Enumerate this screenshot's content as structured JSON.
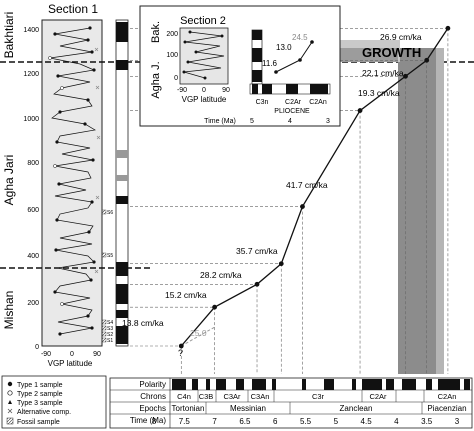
{
  "section1": {
    "title": "Section 1",
    "formations": [
      "Bakhtiari",
      "Agha Jari",
      "Mishan"
    ],
    "depth_ticks": [
      "1400",
      "1200",
      "1000",
      "800",
      "600",
      "400",
      "200",
      "0"
    ],
    "vgp_ticks": [
      "-90",
      "0",
      "90"
    ],
    "vgp_label": "VGP latitude",
    "fossil_samples": [
      "S6",
      "S5",
      "S4",
      "S3",
      "S2",
      "S1"
    ]
  },
  "section2": {
    "title": "Section 2",
    "formations": [
      "Agha J.",
      "Bak."
    ],
    "depth_ticks": [
      "200",
      "100",
      "0"
    ],
    "vgp_ticks": [
      "-90",
      "0",
      "90"
    ],
    "vgp_label": "VGP latitude",
    "chrons": [
      "C3n",
      "C2Ar",
      "C2An"
    ],
    "epoch": "PLIOCENE",
    "time_label": "Time (Ma)",
    "time_ticks": [
      "5",
      "4",
      "3"
    ],
    "rates": [
      "24.5",
      "13.0",
      "11.6"
    ]
  },
  "growth_label": "GROWTH",
  "rates": [
    "26.9 cm/ka",
    "22.1 cm/ka",
    "19.3 cm/ka",
    "41.7 cm/ka",
    "35.7 cm/ka",
    "28.2 cm/ka",
    "15.2 cm/ka",
    "13.8 cm/ka",
    "25.0"
  ],
  "question_mark": "?",
  "timescale": {
    "row_labels": [
      "Polarity",
      "Chrons",
      "Epochs",
      "Time (Ma)"
    ],
    "chrons": [
      "C4n",
      "C3B",
      "C3Ar",
      "C3An",
      "C3r",
      "C2Ar",
      "C2An"
    ],
    "epochs": [
      "Tortonian",
      "Messinian",
      "Zanclean",
      "Piacenzian"
    ],
    "time_ticks": [
      "8",
      "7.5",
      "7",
      "6.5",
      "6",
      "5.5",
      "5",
      "4.5",
      "4",
      "3.5",
      "3"
    ]
  },
  "legend": [
    "Type 1 sample",
    "Type 2 sample",
    "Type 3 sample",
    "Alternative comp.",
    "Fossil sample"
  ],
  "chart_data": {
    "type": "line",
    "xlabel": "Time (Ma)",
    "ylabel": "",
    "x": [
      7.55,
      7.0,
      6.3,
      5.9,
      5.55,
      4.6,
      3.85,
      3.5,
      3.15
    ],
    "y": [
      0,
      170,
      270,
      360,
      610,
      1030,
      1180,
      1250,
      1390
    ],
    "xlim": [
      8.1,
      2.6
    ],
    "ylim": [
      -40,
      1450
    ],
    "segment_rates": [
      "13.8 cm/ka",
      "15.2 cm/ka",
      "28.2 cm/ka",
      "35.7 cm/ka",
      "41.7 cm/ka",
      "19.3 cm/ka",
      "22.1 cm/ka",
      "26.9 cm/ka"
    ]
  }
}
